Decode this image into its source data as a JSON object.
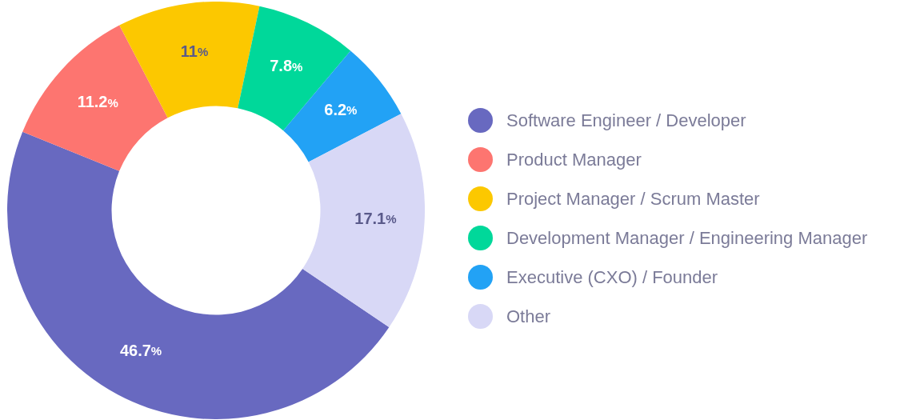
{
  "chart_data": {
    "type": "donut",
    "categories": [
      "Software Engineer / Developer",
      "Product Manager",
      "Project Manager / Scrum Master",
      "Development Manager / Engineering Manager",
      "Executive (CXO) / Founder",
      "Other"
    ],
    "values": [
      46.7,
      11.2,
      11,
      7.8,
      6.2,
      17.1
    ],
    "colors": [
      "#6869c0",
      "#fd7570",
      "#fcc800",
      "#00d89a",
      "#22a2f5",
      "#d8d8f6"
    ],
    "value_labels": [
      "46.7%",
      "11.2%",
      "11%",
      "7.8%",
      "6.2%",
      "17.1%"
    ],
    "legend": "right"
  }
}
